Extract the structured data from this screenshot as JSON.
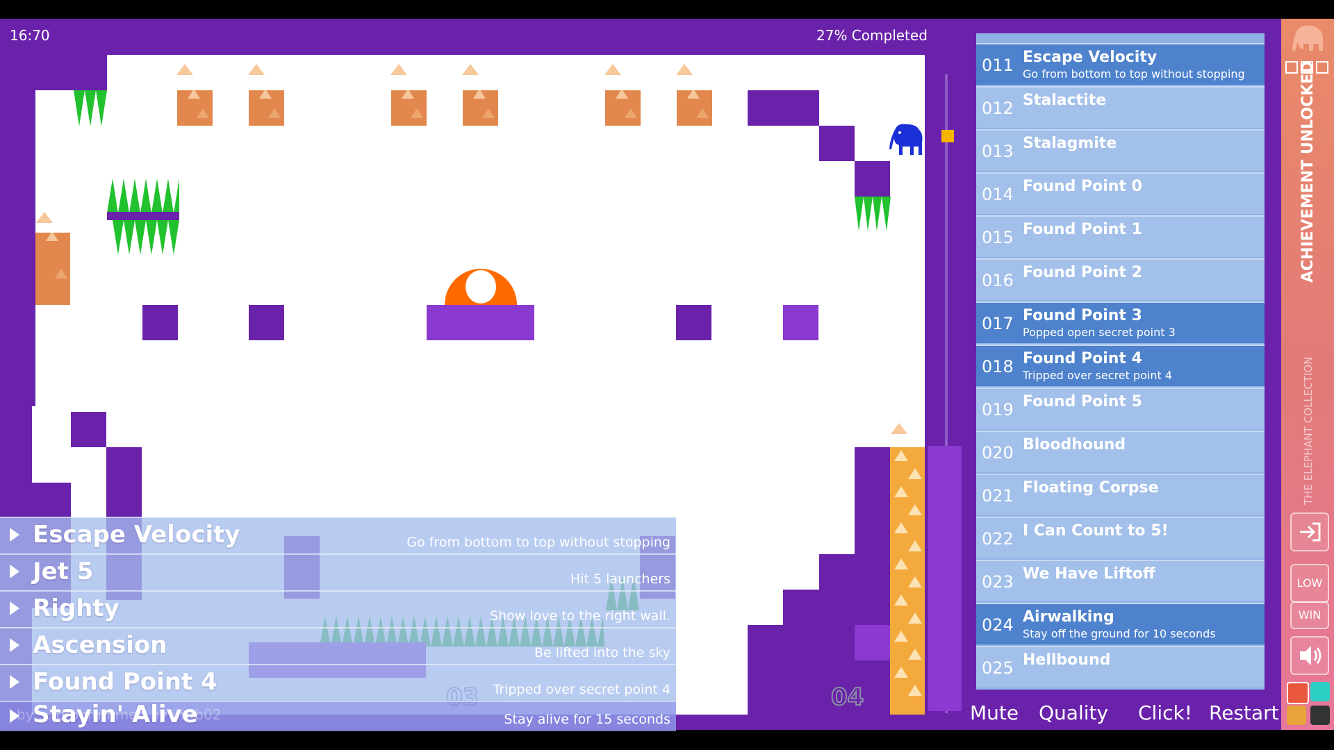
{
  "hud": {
    "timer": "16:70",
    "progress": "27% Completed"
  },
  "level_numbers": [
    "03",
    "04"
  ],
  "overlay_list": [
    {
      "title": "Escape Velocity",
      "desc": "Go from bottom to top without stopping"
    },
    {
      "title": "Jet 5",
      "desc": "Hit 5 launchers"
    },
    {
      "title": "Righty",
      "desc": "Show love to the right wall."
    },
    {
      "title": "Ascension",
      "desc": "Be lifted into the sky"
    },
    {
      "title": "Found Point 4",
      "desc": "Tripped over secret point 4"
    },
    {
      "title": "Stayin' Alive",
      "desc": "Stay alive for 15 seconds"
    }
  ],
  "credits": "by ... programmed by jmtb02",
  "achievements": [
    {
      "num": "011",
      "name": "Escape Velocity",
      "desc": "Go from bottom to top without stopping",
      "unlocked": true
    },
    {
      "num": "012",
      "name": "Stalactite",
      "desc": "",
      "unlocked": false
    },
    {
      "num": "013",
      "name": "Stalagmite",
      "desc": "",
      "unlocked": false
    },
    {
      "num": "014",
      "name": "Found Point 0",
      "desc": "",
      "unlocked": false
    },
    {
      "num": "015",
      "name": "Found Point 1",
      "desc": "",
      "unlocked": false
    },
    {
      "num": "016",
      "name": "Found Point 2",
      "desc": "",
      "unlocked": false
    },
    {
      "num": "017",
      "name": "Found Point 3",
      "desc": "Popped open secret point 3",
      "unlocked": true
    },
    {
      "num": "018",
      "name": "Found Point 4",
      "desc": "Tripped over secret point 4",
      "unlocked": true
    },
    {
      "num": "019",
      "name": "Found Point 5",
      "desc": "",
      "unlocked": false
    },
    {
      "num": "020",
      "name": "Bloodhound",
      "desc": "",
      "unlocked": false
    },
    {
      "num": "021",
      "name": "Floating Corpse",
      "desc": "",
      "unlocked": false
    },
    {
      "num": "022",
      "name": "I Can Count to 5!",
      "desc": "",
      "unlocked": false
    },
    {
      "num": "023",
      "name": "We Have Liftoff",
      "desc": "",
      "unlocked": false
    },
    {
      "num": "024",
      "name": "Airwalking",
      "desc": "Stay off the ground for 10 seconds",
      "unlocked": true
    },
    {
      "num": "025",
      "name": "Hellbound",
      "desc": "",
      "unlocked": false
    }
  ],
  "bottom_buttons": {
    "mute": "Mute",
    "quality": "Quality",
    "click": "Click!",
    "restart": "Restart"
  },
  "side": {
    "achievement_unlocked": "ACHIEVEMENT UNLOCKED",
    "collection": "THE ELEPHANT COLLECTION",
    "low": "LOW",
    "win": "WIN",
    "icons": [
      "elephant-logo-icon",
      "exit-icon",
      "speaker-icon"
    ],
    "swatches": [
      "#e9573f",
      "#2ecfc4",
      "#e8a33a",
      "#333333"
    ]
  },
  "colors": {
    "wall": "#6a22ab",
    "panel_item": "#a3c0ea",
    "panel_item_unlocked": "#4e82cc",
    "spike": "#22c12e",
    "crate": "#e2884e",
    "elephant": "#1b2fd6",
    "bumper": "#ff6a00"
  }
}
